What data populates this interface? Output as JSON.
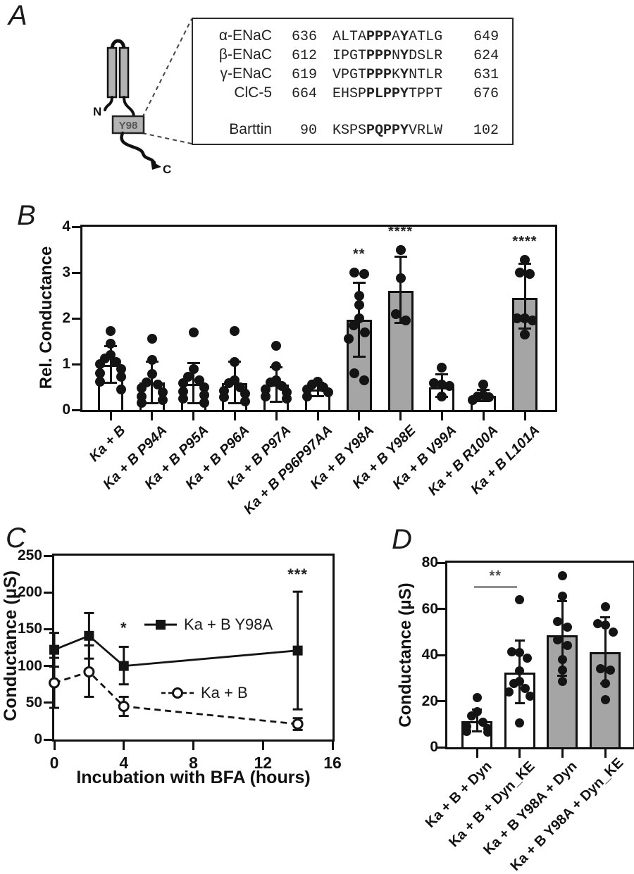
{
  "panels": {
    "a": "A",
    "b": "B",
    "c": "C",
    "d": "D"
  },
  "panel_a": {
    "schematic": {
      "n": "N",
      "c": "C",
      "y98": "Y98"
    },
    "alignment_rows": [
      {
        "name": "α-ENaC",
        "start": "636",
        "end": "649",
        "seq": [
          [
            "ALTA",
            0
          ],
          [
            "PPP",
            1
          ],
          [
            "A",
            0
          ],
          [
            "Y",
            1
          ],
          [
            "ATLG",
            0
          ]
        ]
      },
      {
        "name": "β-ENaC",
        "start": "612",
        "end": "624",
        "seq": [
          [
            "IPGT",
            0
          ],
          [
            "PPP",
            1
          ],
          [
            "N",
            0
          ],
          [
            "Y",
            1
          ],
          [
            "DSLR",
            0
          ]
        ]
      },
      {
        "name": "γ-ENaC",
        "start": "619",
        "end": "631",
        "seq": [
          [
            "VPGT",
            0
          ],
          [
            "PPP",
            1
          ],
          [
            "K",
            0
          ],
          [
            "Y",
            1
          ],
          [
            "NTLR",
            0
          ]
        ]
      },
      {
        "name": "ClC-5",
        "start": "664",
        "end": "676",
        "seq": [
          [
            "EHSP",
            0
          ],
          [
            "PLPPY",
            1
          ],
          [
            "TPPT",
            0
          ]
        ]
      },
      {
        "name": "Barttin",
        "start": "90",
        "end": "102",
        "gap_before": true,
        "seq": [
          [
            "KSPS",
            0
          ],
          [
            "PQPPY",
            1
          ],
          [
            "VRLW",
            0
          ]
        ]
      }
    ]
  },
  "chart_data": [
    {
      "id": "panel-B",
      "type": "bar",
      "ylabel": "Rel. Conductance",
      "ylim": [
        0,
        4
      ],
      "yticks": [
        0,
        1,
        2,
        3,
        4
      ],
      "categories": [
        "Ka + B",
        "Ka + B P94A",
        "Ka + B P95A",
        "Ka + B P96A",
        "Ka + B P97A",
        "Ka + B P96P97AA",
        "Ka + B Y98A",
        "Ka + B Y98E",
        "Ka + B V99A",
        "Ka + B R100A",
        "Ka + B L101A"
      ],
      "values": [
        0.98,
        0.6,
        0.57,
        0.58,
        0.55,
        0.45,
        1.97,
        2.6,
        0.5,
        0.31,
        2.45
      ],
      "error_low": [
        0.6,
        0.15,
        0.15,
        0.15,
        0.18,
        0.3,
        1.16,
        1.9,
        0.28,
        0.2,
        1.77
      ],
      "error_high": [
        1.4,
        1.05,
        1.02,
        1.05,
        0.93,
        0.6,
        2.77,
        3.35,
        0.78,
        0.44,
        3.19
      ],
      "bar_colors": [
        "white",
        "white",
        "white",
        "white",
        "white",
        "white",
        "grey",
        "grey",
        "white",
        "white",
        "grey"
      ],
      "significance": [
        "",
        "",
        "",
        "",
        "",
        "",
        "**",
        "****",
        "",
        "",
        "****"
      ],
      "points": [
        [
          0.45,
          0.62,
          0.72,
          0.8,
          0.9,
          1.0,
          1.05,
          1.12,
          1.2,
          1.45,
          1.72
        ],
        [
          0.15,
          0.22,
          0.3,
          0.38,
          0.48,
          0.55,
          0.6,
          0.78,
          1.1,
          1.55
        ],
        [
          0.15,
          0.25,
          0.32,
          0.4,
          0.5,
          0.58,
          0.65,
          0.72,
          0.9,
          1.7
        ],
        [
          0.18,
          0.28,
          0.35,
          0.42,
          0.5,
          0.58,
          0.65,
          1.05,
          1.72
        ],
        [
          0.25,
          0.3,
          0.38,
          0.45,
          0.52,
          0.6,
          0.65,
          0.95,
          1.4
        ],
        [
          0.3,
          0.38,
          0.45,
          0.5,
          0.55,
          0.62
        ],
        [
          0.65,
          0.8,
          1.55,
          1.7,
          1.85,
          2.0,
          2.3,
          2.5,
          2.97,
          3.0
        ],
        [
          1.95,
          2.1,
          2.88,
          3.5
        ],
        [
          0.3,
          0.52,
          0.55,
          0.58,
          0.92
        ],
        [
          0.22,
          0.28,
          0.3,
          0.32,
          0.55
        ],
        [
          1.65,
          1.95,
          2.0,
          2.0,
          2.97,
          3.0,
          3.28
        ]
      ]
    },
    {
      "id": "panel-C",
      "type": "line",
      "xlabel": "Incubation with BFA (hours)",
      "ylabel": "Conductance (μS)",
      "xlim": [
        0,
        16
      ],
      "ylim": [
        0,
        250
      ],
      "xticks": [
        0,
        4,
        8,
        12,
        16
      ],
      "yticks": [
        0,
        50,
        100,
        150,
        200,
        250
      ],
      "legend_position": "inside",
      "series": [
        {
          "name": "Ka + B Y98A",
          "marker": "filled-square",
          "line": "solid",
          "x": [
            0,
            2,
            4,
            14
          ],
          "y": [
            122,
            141,
            100,
            121
          ],
          "err_low": [
            99,
            110,
            75,
            41
          ],
          "err_high": [
            145,
            172,
            126,
            201
          ]
        },
        {
          "name": "Ka + B",
          "marker": "open-circle",
          "line": "dashed",
          "x": [
            0,
            2,
            4,
            14
          ],
          "y": [
            77,
            92,
            45,
            21
          ],
          "err_low": [
            43,
            58,
            32,
            13
          ],
          "err_high": [
            111,
            128,
            58,
            29
          ]
        }
      ],
      "annotations": [
        {
          "text": "*",
          "x": 4,
          "y": 150
        },
        {
          "text": "***",
          "x": 14,
          "y": 223
        }
      ]
    },
    {
      "id": "panel-D",
      "type": "bar",
      "ylabel": "Conductance (μS)",
      "ylim": [
        0,
        80
      ],
      "yticks": [
        0,
        20,
        40,
        60,
        80
      ],
      "categories": [
        "Ka + B + Dyn",
        "Ka + B + Dyn_KE",
        "Ka + B Y98A + Dyn",
        "Ka + B Y98A + Dyn_KE"
      ],
      "values": [
        11.3,
        32.4,
        48.5,
        41.2
      ],
      "error_low": [
        7,
        19,
        31,
        27.8
      ],
      "error_high": [
        16.5,
        46.4,
        63.5,
        56.5
      ],
      "bar_colors": [
        "white",
        "white",
        "grey",
        "grey"
      ],
      "significance": [
        "",
        "",
        "",
        ""
      ],
      "points": [
        [
          6.5,
          7,
          8,
          9,
          11,
          13.5,
          15.5,
          21.5
        ],
        [
          10.5,
          22,
          24,
          25.5,
          27.5,
          28.5,
          33,
          38.5,
          41,
          41.5,
          64
        ],
        [
          28.5,
          33.5,
          38,
          44,
          46.5,
          52,
          54.5,
          65.5,
          74.5
        ],
        [
          20.5,
          27.5,
          33.5,
          34,
          50,
          53,
          53.5,
          61
        ]
      ],
      "sig_bracket": {
        "from": 0,
        "to": 1,
        "y": 70,
        "label": "**"
      }
    }
  ],
  "colors": {
    "bar_grey": "#a5a5a5",
    "ink": "#111111",
    "sig_line_grey": "#8f8f8f"
  }
}
